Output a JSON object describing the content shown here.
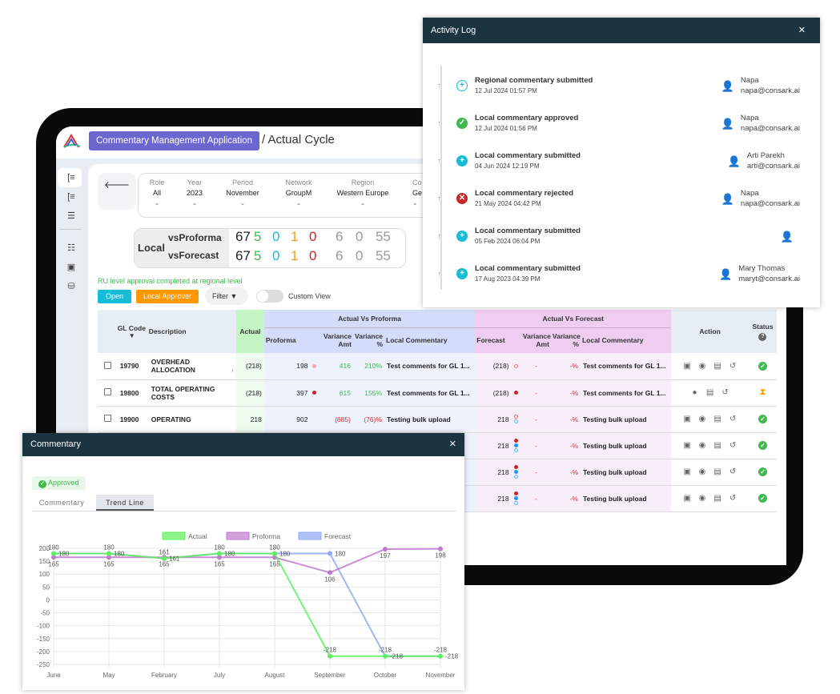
{
  "app": {
    "button": "Commentary Management Application",
    "crumb": "/  Actual Cycle",
    "back": "🡐"
  },
  "filters": [
    {
      "label": "Role",
      "value": "All"
    },
    {
      "label": "Year",
      "value": "2023"
    },
    {
      "label": "Period",
      "value": "November"
    },
    {
      "label": "Network",
      "value": "GroupM"
    },
    {
      "label": "Region",
      "value": "Western Europe"
    },
    {
      "label": "Co",
      "value": "Ge"
    }
  ],
  "summary": {
    "label": "Local",
    "rows": [
      {
        "name": "vsProforma",
        "values": [
          "67",
          "5",
          "0",
          "1",
          "0",
          "6",
          "0",
          "55"
        ]
      },
      {
        "name": "vsForecast",
        "values": [
          "67",
          "5",
          "0",
          "1",
          "0",
          "6",
          "0",
          "55"
        ]
      }
    ],
    "colors": [
      "#222",
      "#3fb950",
      "#17bcd6",
      "#ff9800",
      "#c62828",
      "#999",
      "#999",
      "#999"
    ]
  },
  "status_message": "RU level approval completed at regional level",
  "toolbar": {
    "open": "Open",
    "approver": "Local Approver",
    "filter": "Filter",
    "custom_view": "Custom View",
    "custom_view_on": false
  },
  "table": {
    "headers": {
      "gl": "GL Code",
      "desc": "Description",
      "actual": "Actual",
      "vs_proforma": "Actual Vs Proforma",
      "vs_forecast": "Actual Vs Forecast",
      "proforma": "Proforma",
      "var_amt": "Variance Amt",
      "var_pct": "Variance %",
      "comm": "Local Commentary",
      "forecast": "Forecast",
      "action": "Action",
      "status": "Status"
    },
    "rows": [
      {
        "gl": "19790",
        "desc": "OVERHEAD ALLOCATION",
        "actual": "(218)",
        "proforma": "198",
        "p_dots": [
          "pink"
        ],
        "p_amt": "416",
        "p_pct": "210%",
        "p_neg": false,
        "p_comm": "Test comments for GL 1...",
        "forecast": "(218)",
        "f_dots": [
          "pink-ring"
        ],
        "f_amt": "-",
        "f_pct": "-%",
        "f_comm": "Test comments for GL 1...",
        "actions": [
          "add-comment",
          "view",
          "comments",
          "history"
        ],
        "status": "approved"
      },
      {
        "gl": "19800",
        "desc": "TOTAL OPERATING COSTS",
        "actual": "(218)",
        "proforma": "397",
        "p_dots": [
          "red"
        ],
        "p_amt": "615",
        "p_pct": "155%",
        "p_neg": false,
        "p_comm": "Test comments for GL 1...",
        "forecast": "(218)",
        "f_dots": [
          "red"
        ],
        "f_amt": "-",
        "f_pct": "-%",
        "f_comm": "Test comments for GL 1...",
        "actions": [
          "approve",
          "comments",
          "history"
        ],
        "status": "pending"
      },
      {
        "gl": "19900",
        "desc": "OPERATING",
        "actual": "218",
        "proforma": "902",
        "p_dots": [],
        "p_amt": "(685)",
        "p_pct": "(76)%",
        "p_neg": true,
        "p_comm": "Testing bulk upload",
        "forecast": "218",
        "f_dots": [
          "pink-ring",
          "blue-ring"
        ],
        "f_amt": "-",
        "f_pct": "-%",
        "f_comm": "Testing bulk upload",
        "actions": [
          "add-comment",
          "view",
          "comments",
          "history"
        ],
        "status": "approved"
      },
      {
        "gl": "",
        "desc": "",
        "actual": "",
        "proforma": "",
        "p_dots": [],
        "p_amt": "",
        "p_pct": "",
        "p_neg": false,
        "p_comm": "",
        "forecast": "218",
        "f_dots": [
          "red",
          "blue",
          "blue-ring"
        ],
        "f_amt": "-",
        "f_pct": "-%",
        "f_comm": "Testing bulk upload",
        "actions": [
          "add-comment",
          "view",
          "comments",
          "history"
        ],
        "status": "approved"
      },
      {
        "gl": "",
        "desc": "",
        "actual": "",
        "proforma": "",
        "p_dots": [],
        "p_amt": "",
        "p_pct": "",
        "p_neg": false,
        "p_comm": "",
        "forecast": "218",
        "f_dots": [
          "red",
          "blue",
          "blue-ring"
        ],
        "f_amt": "-",
        "f_pct": "-%",
        "f_comm": "Testing bulk upload",
        "actions": [
          "add-comment",
          "view",
          "comments",
          "history"
        ],
        "status": "approved"
      },
      {
        "gl": "",
        "desc": "",
        "actual": "",
        "proforma": "",
        "p_dots": [],
        "p_amt": "",
        "p_pct": "",
        "p_neg": false,
        "p_comm": "",
        "forecast": "218",
        "f_dots": [
          "red",
          "blue",
          "blue-ring"
        ],
        "f_amt": "-",
        "f_pct": "-%",
        "f_comm": "Testing bulk upload",
        "actions": [
          "add-comment",
          "view",
          "comments",
          "history"
        ],
        "status": "approved"
      }
    ]
  },
  "activity": {
    "title": "Activity Log",
    "close": "✕",
    "items": [
      {
        "title": "Regional commentary submitted",
        "time": "12 Jul 2024 01:57 PM",
        "type": "submitted-outline",
        "name": "Napa",
        "email": "napa@consark.ai"
      },
      {
        "title": "Local commentary approved",
        "time": "12 Jul 2024 01:56 PM",
        "type": "approved",
        "name": "Napa",
        "email": "napa@consark.ai"
      },
      {
        "title": "Local commentary submitted",
        "time": "04 Jun 2024 12:19 PM",
        "type": "submitted",
        "name": "Arti Parekh",
        "email": "arti@consark.ai"
      },
      {
        "title": "Local commentary rejected",
        "time": "21 May 2024 04:42 PM",
        "type": "rejected",
        "name": "Napa",
        "email": "napa@consark.ai"
      },
      {
        "title": "Local commentary submitted",
        "time": "05 Feb 2024 06:04 PM",
        "type": "submitted",
        "name": "",
        "email": ""
      },
      {
        "title": "Local commentary submitted",
        "time": "17 Aug 2023 04:39 PM",
        "type": "submitted",
        "name": "Mary Thomas",
        "email": "maryt@consark.ai"
      }
    ]
  },
  "commentary": {
    "title": "Commentary",
    "close": "✕",
    "badge": "Approved",
    "tabs": [
      "Commentary",
      "Trend Line"
    ],
    "active_tab": 1
  },
  "chart_data": {
    "type": "line",
    "categories": [
      "June",
      "May",
      "February",
      "July",
      "August",
      "September",
      "October",
      "November"
    ],
    "ylim": [
      -250,
      200
    ],
    "yticks": [
      200,
      150,
      100,
      50,
      0,
      -50,
      -100,
      -150,
      -200,
      -250
    ],
    "grid": true,
    "legend": "top",
    "data_labels": true,
    "series": [
      {
        "name": "Actual",
        "color": "#5cf05c",
        "values": [
          180,
          180,
          161,
          180,
          180,
          -218,
          -218,
          -218
        ]
      },
      {
        "name": "Proforma",
        "color": "#c07ad0",
        "values": [
          165,
          165,
          165,
          165,
          165,
          106,
          197,
          198
        ]
      },
      {
        "name": "Forecast",
        "color": "#8fa9f5",
        "values": [
          180,
          180,
          161,
          180,
          180,
          180,
          -218,
          -218
        ]
      }
    ]
  }
}
